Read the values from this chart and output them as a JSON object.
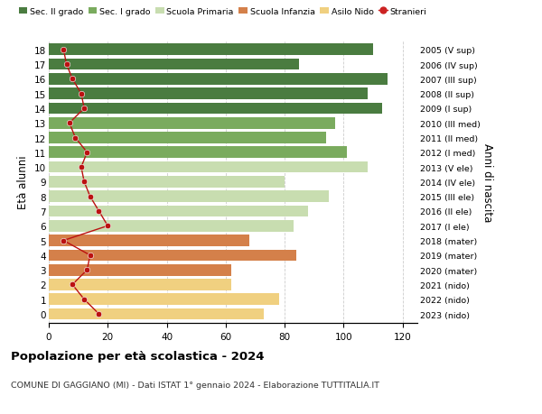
{
  "ages": [
    18,
    17,
    16,
    15,
    14,
    13,
    12,
    11,
    10,
    9,
    8,
    7,
    6,
    5,
    4,
    3,
    2,
    1,
    0
  ],
  "right_labels": [
    "2005 (V sup)",
    "2006 (IV sup)",
    "2007 (III sup)",
    "2008 (II sup)",
    "2009 (I sup)",
    "2010 (III med)",
    "2011 (II med)",
    "2012 (I med)",
    "2013 (V ele)",
    "2014 (IV ele)",
    "2015 (III ele)",
    "2016 (II ele)",
    "2017 (I ele)",
    "2018 (mater)",
    "2019 (mater)",
    "2020 (mater)",
    "2021 (nido)",
    "2022 (nido)",
    "2023 (nido)"
  ],
  "bar_values": [
    110,
    85,
    115,
    108,
    113,
    97,
    94,
    101,
    108,
    80,
    95,
    88,
    83,
    68,
    84,
    62,
    62,
    78,
    73
  ],
  "stranieri_values": [
    5,
    6,
    8,
    11,
    12,
    7,
    9,
    13,
    11,
    12,
    14,
    17,
    20,
    5,
    14,
    13,
    8,
    12,
    17
  ],
  "bar_colors": [
    "#4a7c40",
    "#4a7c40",
    "#4a7c40",
    "#4a7c40",
    "#4a7c40",
    "#7aab5e",
    "#7aab5e",
    "#7aab5e",
    "#c8ddb0",
    "#c8ddb0",
    "#c8ddb0",
    "#c8ddb0",
    "#c8ddb0",
    "#d4804a",
    "#d4804a",
    "#d4804a",
    "#f0d080",
    "#f0d080",
    "#f0d080"
  ],
  "legend_labels": [
    "Sec. II grado",
    "Sec. I grado",
    "Scuola Primaria",
    "Scuola Infanzia",
    "Asilo Nido",
    "Stranieri"
  ],
  "legend_colors": [
    "#4a7c40",
    "#7aab5e",
    "#c8ddb0",
    "#d4804a",
    "#f0d080",
    "#cc2222"
  ],
  "stranieri_color": "#bb1111",
  "title": "Popolazione per età scolastica - 2024",
  "subtitle": "COMUNE DI GAGGIANO (MI) - Dati ISTAT 1° gennaio 2024 - Elaborazione TUTTITALIA.IT",
  "ylabel": "Età alunni",
  "ylabel_right": "Anni di nascita",
  "xlim": [
    0,
    125
  ],
  "xticks": [
    0,
    20,
    40,
    60,
    80,
    100,
    120
  ],
  "background_color": "#ffffff",
  "grid_color": "#cccccc"
}
